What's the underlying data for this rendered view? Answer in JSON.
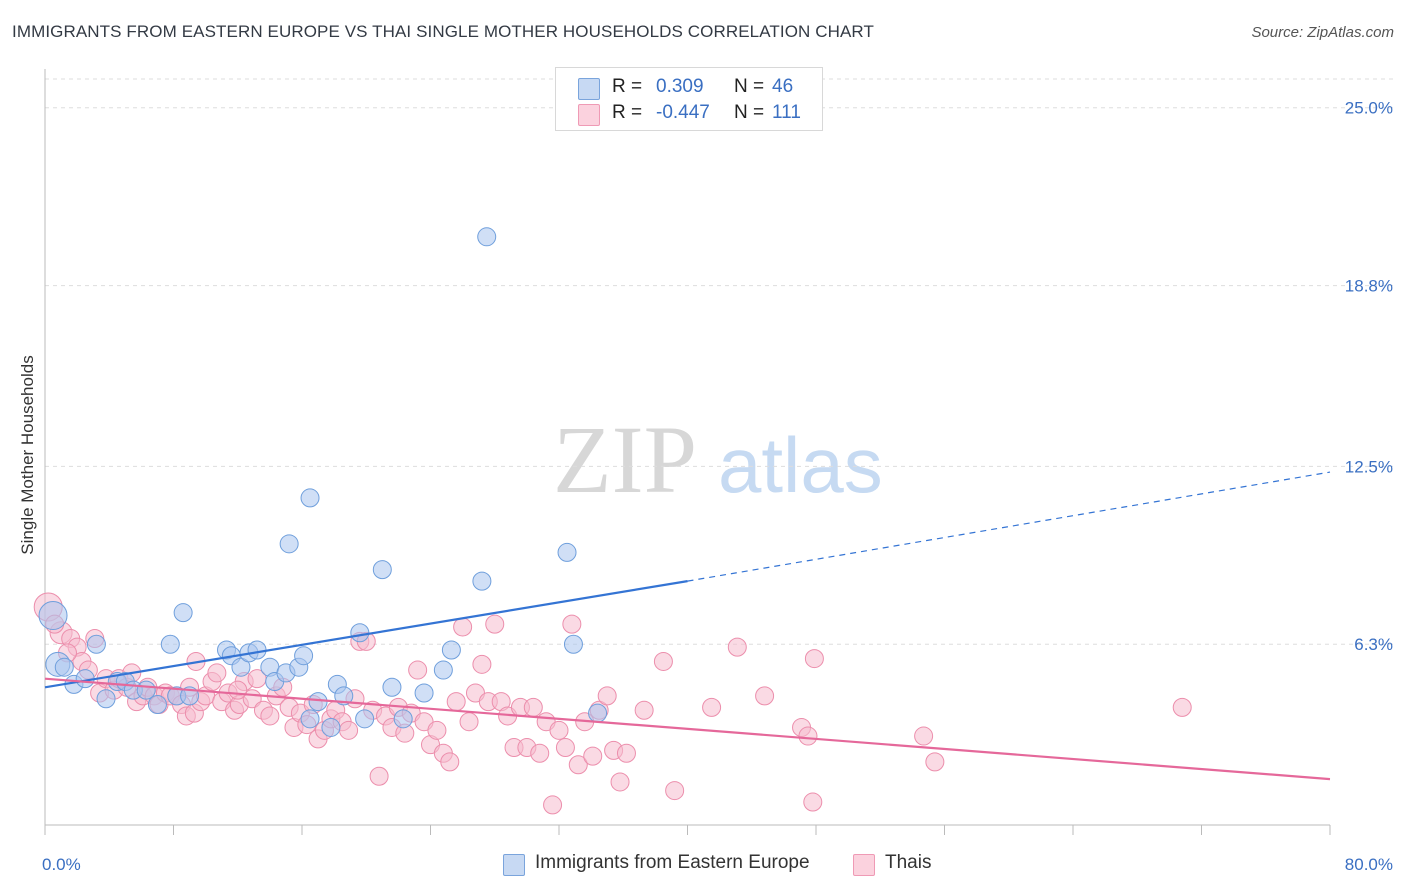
{
  "title": "IMMIGRANTS FROM EASTERN EUROPE VS THAI SINGLE MOTHER HOUSEHOLDS CORRELATION CHART",
  "source": "Source: ZipAtlas.com",
  "watermark": {
    "zip": "ZIP",
    "atlas": "atlas"
  },
  "legend": {
    "series1": {
      "r_label": "R =",
      "r_value": "0.309",
      "n_label": "N =",
      "n_value": "46"
    },
    "series2": {
      "r_label": "R =",
      "r_value": "-0.447",
      "n_label": "N =",
      "n_value": "111"
    }
  },
  "colors": {
    "blue_fill": "#a9c4ee",
    "blue_stroke": "#6f9fdc",
    "blue_line": "#3474d4",
    "pink_fill": "#f6bccd",
    "pink_stroke": "#ec8eac",
    "pink_line": "#e5689a",
    "tick_text": "#3a6fc2",
    "grid": "#dddddd"
  },
  "chart_data": {
    "type": "scatter",
    "title": "IMMIGRANTS FROM EASTERN EUROPE VS THAI SINGLE MOTHER HOUSEHOLDS CORRELATION CHART",
    "xlabel": "",
    "ylabel": "Single Mother Households",
    "xlim": [
      0,
      80
    ],
    "ylim": [
      0,
      26
    ],
    "x_tick_labels": [
      "0.0%",
      "80.0%"
    ],
    "y_ticks": [
      6.3,
      12.5,
      18.8,
      25.0
    ],
    "y_tick_labels": [
      "6.3%",
      "12.5%",
      "18.8%",
      "25.0%"
    ],
    "grid": true,
    "legend_position": "top-center",
    "series": [
      {
        "name": "Immigrants from Eastern Europe",
        "color": "#a9c4ee",
        "trend": {
          "x0": 0,
          "y0": 4.8,
          "x1": 40,
          "y1": 8.5,
          "dashed_to_x": 80,
          "dashed_to_y": 12.3
        },
        "points": [
          [
            0.5,
            7.3,
            14
          ],
          [
            0.8,
            5.6,
            12
          ],
          [
            1.2,
            5.5,
            9
          ],
          [
            1.8,
            4.9,
            9
          ],
          [
            2.5,
            5.1,
            9
          ],
          [
            3.2,
            6.3,
            9
          ],
          [
            3.8,
            4.4,
            9
          ],
          [
            4.5,
            5.0,
            9
          ],
          [
            5.0,
            5.0,
            9
          ],
          [
            5.5,
            4.7,
            9
          ],
          [
            6.3,
            4.7,
            9
          ],
          [
            7.0,
            4.2,
            9
          ],
          [
            7.8,
            6.3,
            9
          ],
          [
            8.2,
            4.5,
            9
          ],
          [
            8.6,
            7.4,
            9
          ],
          [
            9.0,
            4.5,
            9
          ],
          [
            11.3,
            6.1,
            9
          ],
          [
            11.6,
            5.9,
            9
          ],
          [
            12.2,
            5.5,
            9
          ],
          [
            12.7,
            6.0,
            9
          ],
          [
            13.2,
            6.1,
            9
          ],
          [
            14.0,
            5.5,
            9
          ],
          [
            14.3,
            5.0,
            9
          ],
          [
            15.0,
            5.3,
            9
          ],
          [
            15.8,
            5.5,
            9
          ],
          [
            16.1,
            5.9,
            9
          ],
          [
            16.5,
            3.7,
            9
          ],
          [
            17.0,
            4.3,
            9
          ],
          [
            15.2,
            9.8,
            9
          ],
          [
            16.5,
            11.4,
            9
          ],
          [
            17.8,
            3.4,
            9
          ],
          [
            18.2,
            4.9,
            9
          ],
          [
            18.6,
            4.5,
            9
          ],
          [
            19.6,
            6.7,
            9
          ],
          [
            19.9,
            3.7,
            9
          ],
          [
            21.0,
            8.9,
            9
          ],
          [
            21.6,
            4.8,
            9
          ],
          [
            22.3,
            3.7,
            9
          ],
          [
            23.6,
            4.6,
            9
          ],
          [
            24.8,
            5.4,
            9
          ],
          [
            25.3,
            6.1,
            9
          ],
          [
            27.2,
            8.5,
            9
          ],
          [
            27.5,
            20.5,
            9
          ],
          [
            32.5,
            9.5,
            9
          ],
          [
            32.9,
            6.3,
            9
          ],
          [
            34.4,
            3.9,
            9
          ]
        ]
      },
      {
        "name": "Thais",
        "color": "#f6bccd",
        "trend": {
          "x0": 0,
          "y0": 5.1,
          "x1": 80,
          "y1": 1.6
        },
        "points": [
          [
            0.2,
            7.6,
            14
          ],
          [
            1.0,
            6.7,
            11
          ],
          [
            1.6,
            6.5,
            9
          ],
          [
            2.0,
            6.2,
            9
          ],
          [
            2.3,
            5.7,
            9
          ],
          [
            2.7,
            5.4,
            9
          ],
          [
            3.1,
            6.5,
            9
          ],
          [
            3.4,
            4.6,
            9
          ],
          [
            3.8,
            5.1,
            9
          ],
          [
            4.3,
            4.7,
            9
          ],
          [
            4.6,
            5.1,
            9
          ],
          [
            5.1,
            4.8,
            9
          ],
          [
            5.4,
            5.3,
            9
          ],
          [
            5.7,
            4.3,
            9
          ],
          [
            6.1,
            4.5,
            9
          ],
          [
            6.4,
            4.8,
            9
          ],
          [
            6.8,
            4.5,
            9
          ],
          [
            7.1,
            4.2,
            9
          ],
          [
            7.5,
            4.6,
            9
          ],
          [
            7.8,
            4.5,
            9
          ],
          [
            8.2,
            4.5,
            9
          ],
          [
            8.5,
            4.2,
            9
          ],
          [
            8.8,
            3.8,
            9
          ],
          [
            9.0,
            4.8,
            9
          ],
          [
            9.3,
            3.9,
            9
          ],
          [
            9.7,
            4.3,
            9
          ],
          [
            10.0,
            4.5,
            9
          ],
          [
            10.4,
            5.0,
            9
          ],
          [
            10.7,
            5.3,
            9
          ],
          [
            11.0,
            4.3,
            9
          ],
          [
            11.4,
            4.6,
            9
          ],
          [
            11.8,
            4.0,
            9
          ],
          [
            12.1,
            4.2,
            9
          ],
          [
            12.4,
            5.0,
            9
          ],
          [
            12.9,
            4.4,
            9
          ],
          [
            13.2,
            5.1,
            9
          ],
          [
            13.6,
            4.0,
            9
          ],
          [
            14.0,
            3.8,
            9
          ],
          [
            14.4,
            4.5,
            9
          ],
          [
            14.8,
            4.8,
            9
          ],
          [
            15.2,
            4.1,
            9
          ],
          [
            15.5,
            3.4,
            9
          ],
          [
            15.9,
            3.9,
            9
          ],
          [
            16.3,
            3.5,
            9
          ],
          [
            16.7,
            4.2,
            9
          ],
          [
            17.0,
            3.0,
            9
          ],
          [
            17.4,
            3.3,
            9
          ],
          [
            17.8,
            3.7,
            9
          ],
          [
            18.1,
            4.0,
            9
          ],
          [
            18.5,
            3.6,
            9
          ],
          [
            18.9,
            3.3,
            9
          ],
          [
            19.3,
            4.4,
            9
          ],
          [
            19.6,
            6.4,
            9
          ],
          [
            20.0,
            6.4,
            9
          ],
          [
            20.4,
            4.0,
            9
          ],
          [
            20.8,
            1.7,
            9
          ],
          [
            21.2,
            3.8,
            9
          ],
          [
            21.6,
            3.4,
            9
          ],
          [
            22.0,
            4.1,
            9
          ],
          [
            22.4,
            3.2,
            9
          ],
          [
            22.8,
            3.9,
            9
          ],
          [
            23.2,
            5.4,
            9
          ],
          [
            23.6,
            3.6,
            9
          ],
          [
            24.0,
            2.8,
            9
          ],
          [
            24.4,
            3.3,
            9
          ],
          [
            24.8,
            2.5,
            9
          ],
          [
            25.2,
            2.2,
            9
          ],
          [
            25.6,
            4.3,
            9
          ],
          [
            26.0,
            6.9,
            9
          ],
          [
            26.4,
            3.6,
            9
          ],
          [
            26.8,
            4.6,
            9
          ],
          [
            27.2,
            5.6,
            9
          ],
          [
            27.6,
            4.3,
            9
          ],
          [
            28.0,
            7.0,
            9
          ],
          [
            28.4,
            4.3,
            9
          ],
          [
            28.8,
            3.8,
            9
          ],
          [
            29.2,
            2.7,
            9
          ],
          [
            29.6,
            4.1,
            9
          ],
          [
            30.0,
            2.7,
            9
          ],
          [
            30.4,
            4.1,
            9
          ],
          [
            30.8,
            2.5,
            9
          ],
          [
            31.2,
            3.6,
            9
          ],
          [
            31.6,
            0.7,
            9
          ],
          [
            32.0,
            3.3,
            9
          ],
          [
            32.4,
            2.7,
            9
          ],
          [
            32.8,
            7.0,
            9
          ],
          [
            33.2,
            2.1,
            9
          ],
          [
            33.6,
            3.6,
            9
          ],
          [
            34.1,
            2.4,
            9
          ],
          [
            34.5,
            4.0,
            9
          ],
          [
            35.0,
            4.5,
            9
          ],
          [
            35.4,
            2.6,
            9
          ],
          [
            35.8,
            1.5,
            9
          ],
          [
            36.2,
            2.5,
            9
          ],
          [
            37.3,
            4.0,
            9
          ],
          [
            38.5,
            5.7,
            9
          ],
          [
            39.2,
            1.2,
            9
          ],
          [
            41.5,
            4.1,
            9
          ],
          [
            43.1,
            6.2,
            9
          ],
          [
            44.8,
            4.5,
            9
          ],
          [
            47.1,
            3.4,
            9
          ],
          [
            47.5,
            3.1,
            9
          ],
          [
            47.8,
            0.8,
            9
          ],
          [
            47.9,
            5.8,
            9
          ],
          [
            54.7,
            3.1,
            9
          ],
          [
            55.4,
            2.2,
            9
          ],
          [
            70.8,
            4.1,
            9
          ],
          [
            0.6,
            7.0,
            9
          ],
          [
            1.4,
            6.0,
            9
          ],
          [
            9.4,
            5.7,
            9
          ],
          [
            12.0,
            4.7,
            9
          ]
        ]
      }
    ]
  },
  "bottom_legend": {
    "item1": "Immigrants from Eastern Europe",
    "item2": "Thais"
  }
}
